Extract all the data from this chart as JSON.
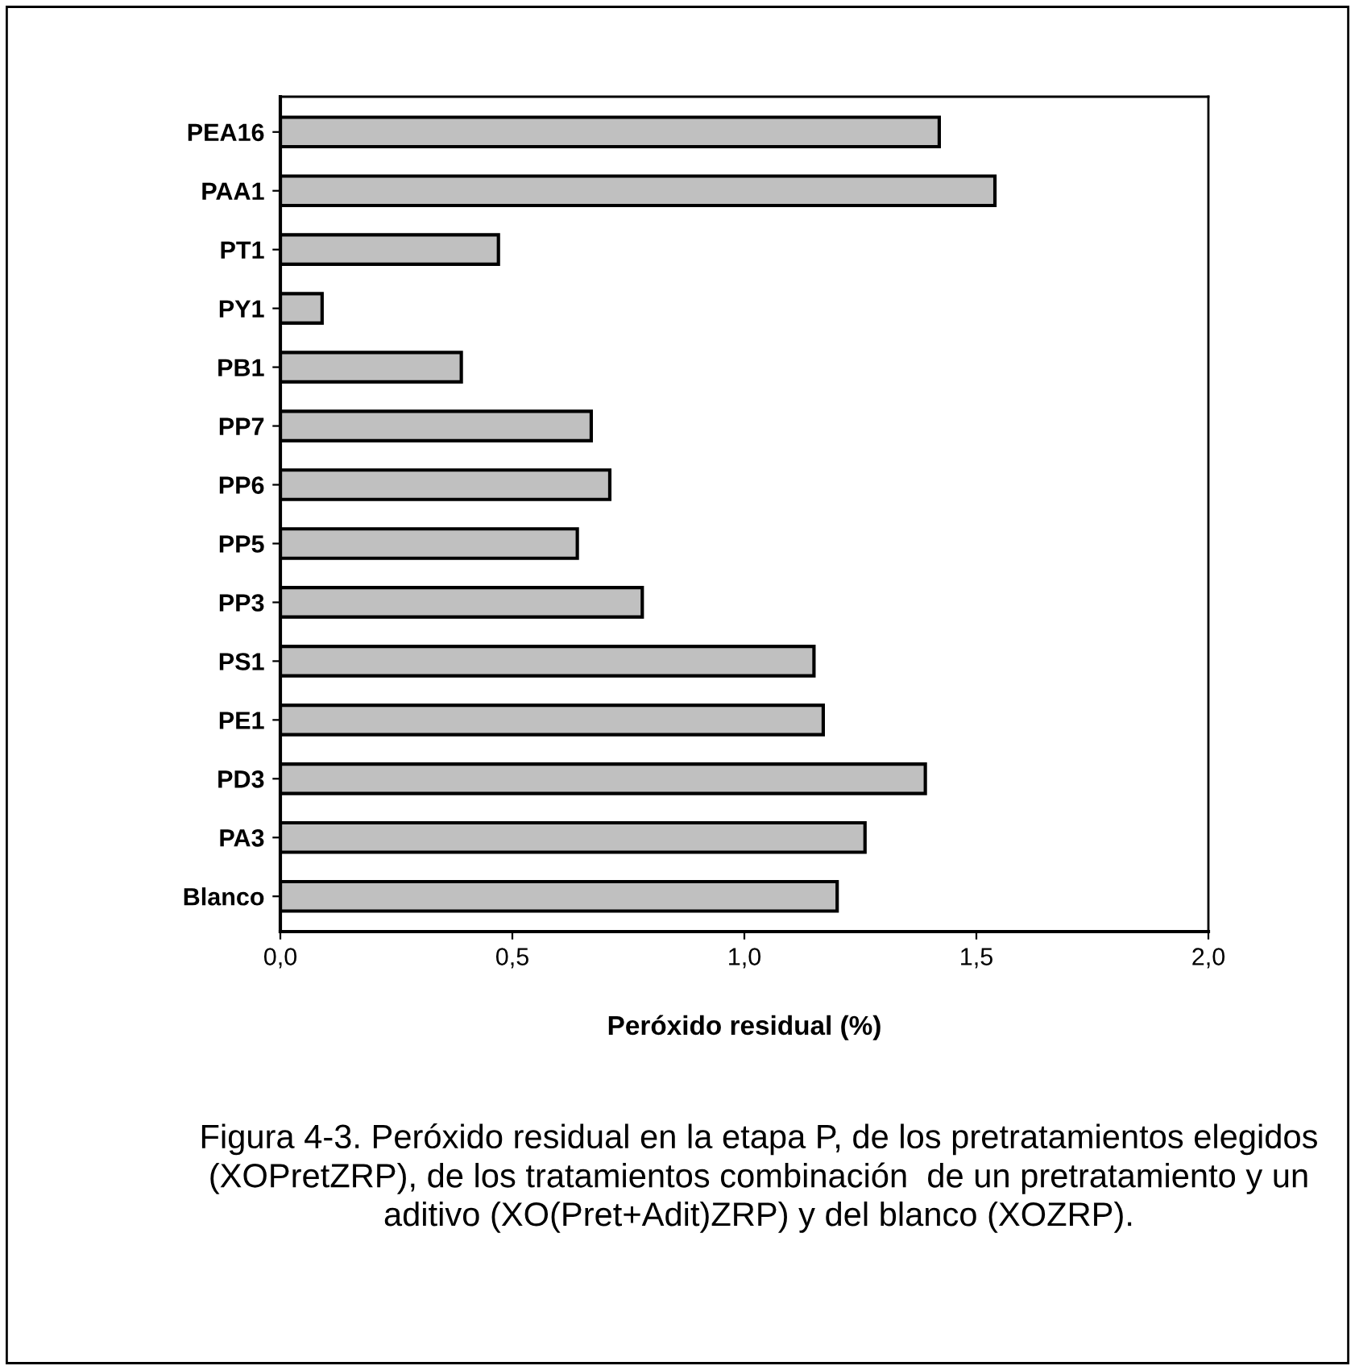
{
  "chart_data": {
    "type": "bar",
    "orientation": "horizontal",
    "categories": [
      "PEA16",
      "PAA1",
      "PT1",
      "PY1",
      "PB1",
      "PP7",
      "PP6",
      "PP5",
      "PP3",
      "PS1",
      "PE1",
      "PD3",
      "PA3",
      "Blanco"
    ],
    "values": [
      1.42,
      1.54,
      0.47,
      0.09,
      0.39,
      0.67,
      0.71,
      0.64,
      0.78,
      1.15,
      1.17,
      1.39,
      1.26,
      1.2
    ],
    "color": "#c0c0c0",
    "xlim": [
      0,
      2
    ],
    "xticks": [
      {
        "value": 0,
        "label": "0,0"
      },
      {
        "value": 0.5,
        "label": "0,5"
      },
      {
        "value": 1,
        "label": "1,0"
      },
      {
        "value": 1.5,
        "label": "1,5"
      },
      {
        "value": 2,
        "label": "2,0"
      }
    ],
    "xlabel": "Peróxido residual (%)",
    "grid": false,
    "annotations": [
      "Figura 4-3. Peróxido residual en la etapa P, de los pretratamientos elegidos (XOPretZRP), de los tratamientos combinación  de un pretratamiento y un aditivo (XO(Pret+Adit)ZRP) y del blanco (XOZRP)."
    ]
  }
}
